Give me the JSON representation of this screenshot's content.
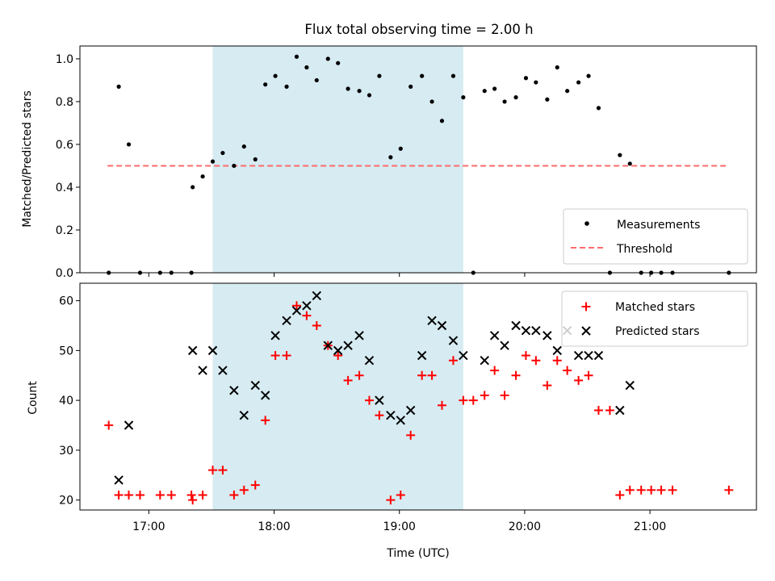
{
  "colors": {
    "shade": "#add8e6",
    "measurement": "#000000",
    "threshold": "#ff6b6b",
    "matched": "#ff0000",
    "predicted": "#000000"
  },
  "chart_data": [
    {
      "type": "scatter",
      "title": "Flux total observing time = 2.00 h",
      "ylabel": "Matched/Predicted stars",
      "xlabel": "",
      "xlim": [
        16.45,
        21.85
      ],
      "ylim": [
        0.0,
        1.06
      ],
      "yticks": [
        0.0,
        0.2,
        0.4,
        0.6,
        0.8,
        1.0
      ],
      "ytick_labels": [
        "0.0",
        "0.2",
        "0.4",
        "0.6",
        "0.8",
        "1.0"
      ],
      "xticks": [
        17,
        18,
        19,
        20,
        21
      ],
      "shaded_span": [
        17.51,
        19.51
      ],
      "legend": {
        "placement": "lower-right",
        "entries": [
          "Measurements",
          "Threshold"
        ]
      },
      "threshold": {
        "name": "Threshold",
        "x": [
          16.67,
          21.63
        ],
        "y": 0.5
      },
      "series": [
        {
          "name": "Measurements",
          "x": [
            16.68,
            16.76,
            16.84,
            16.93,
            17.09,
            17.18,
            17.34,
            17.35,
            17.43,
            17.51,
            17.59,
            17.68,
            17.76,
            17.85,
            17.93,
            18.01,
            18.1,
            18.18,
            18.26,
            18.34,
            18.43,
            18.51,
            18.59,
            18.68,
            18.76,
            18.84,
            18.93,
            19.01,
            19.09,
            19.18,
            19.26,
            19.34,
            19.43,
            19.51,
            19.59,
            19.68,
            19.76,
            19.84,
            19.93,
            20.01,
            20.09,
            20.18,
            20.26,
            20.34,
            20.43,
            20.51,
            20.59,
            20.68,
            20.76,
            20.84,
            20.93,
            21.01,
            21.09,
            21.18,
            21.63
          ],
          "y": [
            0.0,
            0.87,
            0.6,
            0.0,
            0.0,
            0.0,
            0.0,
            0.4,
            0.45,
            0.52,
            0.56,
            0.5,
            0.59,
            0.53,
            0.88,
            0.92,
            0.87,
            1.01,
            0.96,
            0.9,
            1.0,
            0.98,
            0.86,
            0.85,
            0.83,
            0.92,
            0.54,
            0.58,
            0.87,
            0.92,
            0.8,
            0.71,
            0.92,
            0.82,
            0.0,
            0.85,
            0.86,
            0.8,
            0.82,
            0.91,
            0.89,
            0.81,
            0.96,
            0.85,
            0.89,
            0.92,
            0.77,
            0.0,
            0.55,
            0.51,
            0.0,
            0.0,
            0.0,
            0.0,
            0.0
          ]
        }
      ]
    },
    {
      "type": "scatter",
      "title": "",
      "ylabel": "Count",
      "xlabel": "Time (UTC)",
      "xlim": [
        16.45,
        21.85
      ],
      "ylim": [
        18,
        63.5
      ],
      "yticks": [
        20,
        30,
        40,
        50,
        60
      ],
      "ytick_labels": [
        "20",
        "30",
        "40",
        "50",
        "60"
      ],
      "xticks": [
        17,
        18,
        19,
        20,
        21
      ],
      "xtick_labels": [
        "17:00",
        "18:00",
        "19:00",
        "20:00",
        "21:00"
      ],
      "shaded_span": [
        17.51,
        19.51
      ],
      "legend": {
        "placement": "upper-right",
        "entries": [
          "Matched stars",
          "Predicted stars"
        ]
      },
      "series": [
        {
          "name": "Matched stars",
          "marker": "plus",
          "x": [
            16.68,
            16.76,
            16.84,
            16.93,
            17.09,
            17.18,
            17.34,
            17.35,
            17.43,
            17.51,
            17.59,
            17.68,
            17.76,
            17.85,
            17.93,
            18.01,
            18.1,
            18.18,
            18.26,
            18.34,
            18.43,
            18.51,
            18.59,
            18.68,
            18.76,
            18.84,
            18.93,
            19.01,
            19.09,
            19.18,
            19.26,
            19.34,
            19.43,
            19.51,
            19.59,
            19.68,
            19.76,
            19.84,
            19.93,
            20.01,
            20.09,
            20.18,
            20.26,
            20.34,
            20.43,
            20.51,
            20.59,
            20.68,
            20.76,
            20.84,
            20.93,
            21.01,
            21.09,
            21.18,
            21.63
          ],
          "y": [
            35,
            21,
            21,
            21,
            21,
            21,
            21,
            20,
            21,
            26,
            26,
            21,
            22,
            23,
            36,
            49,
            49,
            59,
            57,
            55,
            51,
            49,
            44,
            45,
            40,
            37,
            20,
            21,
            33,
            45,
            45,
            39,
            48,
            40,
            40,
            41,
            46,
            41,
            45,
            49,
            48,
            43,
            48,
            46,
            44,
            45,
            38,
            38,
            21,
            22,
            22,
            22,
            22,
            22,
            22
          ]
        },
        {
          "name": "Predicted stars",
          "marker": "x",
          "x": [
            16.76,
            16.84,
            17.35,
            17.43,
            17.51,
            17.59,
            17.68,
            17.76,
            17.85,
            17.93,
            18.01,
            18.1,
            18.18,
            18.26,
            18.34,
            18.43,
            18.51,
            18.59,
            18.68,
            18.76,
            18.84,
            18.93,
            19.01,
            19.09,
            19.18,
            19.26,
            19.34,
            19.43,
            19.51,
            19.68,
            19.76,
            19.84,
            19.93,
            20.01,
            20.09,
            20.18,
            20.26,
            20.34,
            20.43,
            20.51,
            20.59,
            20.76,
            20.84
          ],
          "y": [
            24,
            35,
            50,
            46,
            50,
            46,
            42,
            37,
            43,
            41,
            53,
            56,
            58,
            59,
            61,
            51,
            50,
            51,
            53,
            48,
            40,
            37,
            36,
            38,
            49,
            56,
            55,
            52,
            49,
            48,
            53,
            51,
            55,
            54,
            54,
            53,
            50,
            54,
            49,
            49,
            49,
            38,
            43
          ]
        }
      ]
    }
  ]
}
